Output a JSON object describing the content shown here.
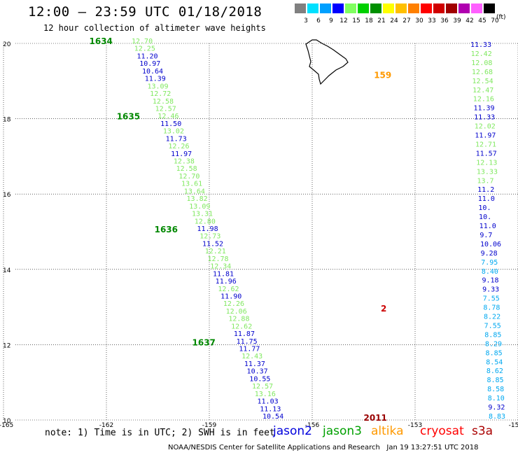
{
  "title": "12:00 – 23:59 UTC 01/18/2018",
  "subtitle": "12 hour collection of altimeter wave heights",
  "legend": {
    "unit": "(ft)",
    "bins": [
      {
        "label": "3",
        "color": "#808080"
      },
      {
        "label": "6",
        "color": "#00e0ff"
      },
      {
        "label": "9",
        "color": "#00a0ff"
      },
      {
        "label": "12",
        "color": "#0000ff"
      },
      {
        "label": "15",
        "color": "#80ff60"
      },
      {
        "label": "18",
        "color": "#00d000"
      },
      {
        "label": "21",
        "color": "#009000"
      },
      {
        "label": "24",
        "color": "#ffff00"
      },
      {
        "label": "27",
        "color": "#ffc000"
      },
      {
        "label": "30",
        "color": "#ff8000"
      },
      {
        "label": "33",
        "color": "#ff0000"
      },
      {
        "label": "36",
        "color": "#d00000"
      },
      {
        "label": "39",
        "color": "#a00000"
      },
      {
        "label": "42",
        "color": "#b000b0"
      },
      {
        "label": "45",
        "color": "#ff60ff"
      },
      {
        "label": "70",
        "color": "#000000"
      }
    ]
  },
  "axes": {
    "lon_ticks": [
      "-165",
      "-162",
      "-159",
      "-156",
      "-153",
      "-15"
    ],
    "lat_ticks": [
      "20",
      "18",
      "16",
      "14",
      "12",
      "10"
    ]
  },
  "passes": [
    {
      "id": "1634",
      "lon": -162.5,
      "lat": 20.0
    },
    {
      "id": "1635",
      "lon": -161.7,
      "lat": 18.0
    },
    {
      "id": "1636",
      "lon": -160.6,
      "lat": 15.0
    },
    {
      "id": "1637",
      "lon": -159.5,
      "lat": 12.0
    },
    {
      "id": "2011",
      "lon": -154.5,
      "lat": 10.0
    },
    {
      "id": "159",
      "lon": -154.2,
      "lat": 19.1
    },
    {
      "id": "2",
      "lon": -154.0,
      "lat": 12.9
    }
  ],
  "track_left": [
    {
      "v": "12.70",
      "c": "#80e860"
    },
    {
      "v": "12.25",
      "c": "#80e860"
    },
    {
      "v": "11.20",
      "c": "#0000cc"
    },
    {
      "v": "10.97",
      "c": "#0000cc"
    },
    {
      "v": "10.64",
      "c": "#0000cc"
    },
    {
      "v": "11.39",
      "c": "#0000cc"
    },
    {
      "v": "13.09",
      "c": "#80e860"
    },
    {
      "v": "12.72",
      "c": "#80e860"
    },
    {
      "v": "12.58",
      "c": "#80e860"
    },
    {
      "v": "12.57",
      "c": "#80e860"
    },
    {
      "v": "12.46",
      "c": "#80e860"
    },
    {
      "v": "11.50",
      "c": "#0000cc"
    },
    {
      "v": "13.02",
      "c": "#80e860"
    },
    {
      "v": "11.73",
      "c": "#0000cc"
    },
    {
      "v": "12.26",
      "c": "#80e860"
    },
    {
      "v": "11.97",
      "c": "#0000cc"
    },
    {
      "v": "12.38",
      "c": "#80e860"
    },
    {
      "v": "12.58",
      "c": "#80e860"
    },
    {
      "v": "12.70",
      "c": "#80e860"
    },
    {
      "v": "13.61",
      "c": "#80e860"
    },
    {
      "v": "13.64",
      "c": "#80e860"
    },
    {
      "v": "13.82",
      "c": "#80e860"
    },
    {
      "v": "13.09",
      "c": "#80e860"
    },
    {
      "v": "13.31",
      "c": "#80e860"
    },
    {
      "v": "12.80",
      "c": "#80e860"
    },
    {
      "v": "11.98",
      "c": "#0000cc"
    },
    {
      "v": "12.73",
      "c": "#80e860"
    },
    {
      "v": "11.52",
      "c": "#0000cc"
    },
    {
      "v": "12.21",
      "c": "#80e860"
    },
    {
      "v": "12.78",
      "c": "#80e860"
    },
    {
      "v": "12.34",
      "c": "#80e860"
    },
    {
      "v": "11.81",
      "c": "#0000cc"
    },
    {
      "v": "11.96",
      "c": "#0000cc"
    },
    {
      "v": "12.62",
      "c": "#80e860"
    },
    {
      "v": "11.90",
      "c": "#0000cc"
    },
    {
      "v": "12.26",
      "c": "#80e860"
    },
    {
      "v": "12.06",
      "c": "#80e860"
    },
    {
      "v": "12.88",
      "c": "#80e860"
    },
    {
      "v": "12.62",
      "c": "#80e860"
    },
    {
      "v": "11.87",
      "c": "#0000cc"
    },
    {
      "v": "11.75",
      "c": "#0000cc"
    },
    {
      "v": "11.77",
      "c": "#0000cc"
    },
    {
      "v": "12.43",
      "c": "#80e860"
    },
    {
      "v": "11.37",
      "c": "#0000cc"
    },
    {
      "v": "10.37",
      "c": "#0000cc"
    },
    {
      "v": "10.55",
      "c": "#0000cc"
    },
    {
      "v": "12.57",
      "c": "#80e860"
    },
    {
      "v": "13.16",
      "c": "#80e860"
    },
    {
      "v": "11.03",
      "c": "#0000cc"
    },
    {
      "v": "11.13",
      "c": "#0000cc"
    },
    {
      "v": "10.54",
      "c": "#0000cc"
    }
  ],
  "track_right": [
    {
      "v": "11.33",
      "c": "#0000cc"
    },
    {
      "v": "12.42",
      "c": "#80e860"
    },
    {
      "v": "12.08",
      "c": "#80e860"
    },
    {
      "v": "12.68",
      "c": "#80e860"
    },
    {
      "v": "12.54",
      "c": "#80e860"
    },
    {
      "v": "12.47",
      "c": "#80e860"
    },
    {
      "v": "12.16",
      "c": "#80e860"
    },
    {
      "v": "11.39",
      "c": "#0000cc"
    },
    {
      "v": "11.33",
      "c": "#0000cc"
    },
    {
      "v": "12.02",
      "c": "#80e860"
    },
    {
      "v": "11.97",
      "c": "#0000cc"
    },
    {
      "v": "12.71",
      "c": "#80e860"
    },
    {
      "v": "11.57",
      "c": "#0000cc"
    },
    {
      "v": "12.13",
      "c": "#80e860"
    },
    {
      "v": "13.33",
      "c": "#80e860"
    },
    {
      "v": "13.7",
      "c": "#80e860"
    },
    {
      "v": "11.2",
      "c": "#0000cc"
    },
    {
      "v": "11.0",
      "c": "#0000cc"
    },
    {
      "v": "10.",
      "c": "#0000cc"
    },
    {
      "v": "10.",
      "c": "#0000cc"
    },
    {
      "v": "11.0",
      "c": "#0000cc"
    },
    {
      "v": "9.7",
      "c": "#0000cc"
    },
    {
      "v": "10.06",
      "c": "#0000cc"
    },
    {
      "v": "9.28",
      "c": "#0000cc"
    },
    {
      "v": "7.95",
      "c": "#00a8f0"
    },
    {
      "v": "8.40",
      "c": "#00a8f0"
    },
    {
      "v": "9.18",
      "c": "#0000cc"
    },
    {
      "v": "9.33",
      "c": "#0000cc"
    },
    {
      "v": "7.55",
      "c": "#00a8f0"
    },
    {
      "v": "8.78",
      "c": "#00a8f0"
    },
    {
      "v": "8.22",
      "c": "#00a8f0"
    },
    {
      "v": "7.55",
      "c": "#00a8f0"
    },
    {
      "v": "8.85",
      "c": "#00a8f0"
    },
    {
      "v": "8.29",
      "c": "#00a8f0"
    },
    {
      "v": "8.85",
      "c": "#00a8f0"
    },
    {
      "v": "8.54",
      "c": "#00a8f0"
    },
    {
      "v": "8.62",
      "c": "#00a8f0"
    },
    {
      "v": "8.85",
      "c": "#00a8f0"
    },
    {
      "v": "8.58",
      "c": "#00a8f0"
    },
    {
      "v": "8.10",
      "c": "#00a8f0"
    },
    {
      "v": "9.32",
      "c": "#0000cc"
    },
    {
      "v": "8.83",
      "c": "#00a8f0"
    }
  ],
  "note": "note: 1) Time is in UTC; 2) SWH is in feet",
  "satellites": [
    {
      "name": "jason2",
      "color": "#0000dd"
    },
    {
      "name": "jason3",
      "color": "#00a000"
    },
    {
      "name": "altika",
      "color": "#ff9900"
    },
    {
      "name": "cryosat",
      "color": "#ff0000"
    },
    {
      "name": "s3a",
      "color": "#aa0000"
    }
  ],
  "credit": "NOAA/NESDIS Center for Satellite Applications and Research   Jan 19 13:27:51 UTC 2018"
}
